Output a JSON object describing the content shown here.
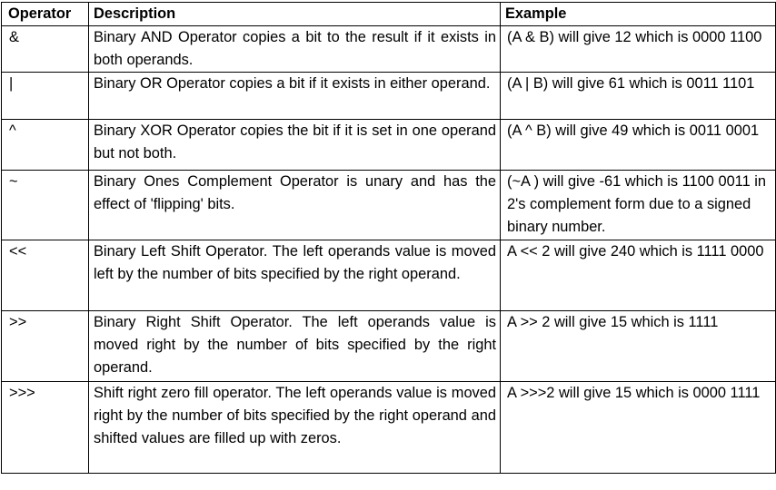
{
  "table": {
    "headers": {
      "operator": "Operator",
      "description": "Description",
      "example": "Example"
    },
    "rows": [
      {
        "operator": "&",
        "description": "Binary AND Operator copies a bit to the result if it exists in both operands.",
        "example": "(A & B) will give 12 which is 0000 1100"
      },
      {
        "operator": "|",
        "description": "Binary OR Operator copies a bit if it exists in either operand.",
        "example": "(A | B) will give 61 which is 0011 1101"
      },
      {
        "operator": "^",
        "description": "Binary XOR Operator copies the bit if it is set in one operand but not both.",
        "example": "(A ^ B) will give 49 which is 0011 0001"
      },
      {
        "operator": "~",
        "description": "Binary Ones Complement Operator is unary and has the effect of 'flipping' bits.",
        "example": "(~A ) will give -61 which is 1100 0011 in 2's complement form due to a signed binary number."
      },
      {
        "operator": "<<",
        "description": "Binary Left Shift Operator. The left operands value is moved left by the number of bits specified by the right operand.",
        "example": "A << 2 will give 240 which is 1111 0000"
      },
      {
        "operator": ">>",
        "description": "Binary Right Shift Operator. The left operands value is moved right by the number of bits specified by the right operand.",
        "example": "A >> 2 will give 15 which is 1111"
      },
      {
        "operator": ">>>",
        "description": "Shift right zero fill operator. The left operands value is moved right by the number of bits specified by the right operand and shifted values are filled up with zeros.",
        "example": "A >>>2 will give 15 which is 0000 1111"
      }
    ]
  }
}
